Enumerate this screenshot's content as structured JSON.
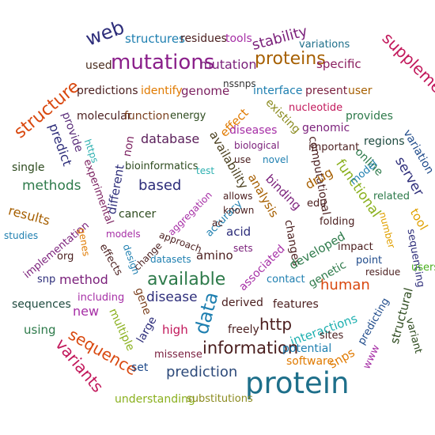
{
  "words": [
    {
      "text": "web",
      "color": "#2d2d7a"
    },
    {
      "text": "structures",
      "color": "#1e7fb0"
    },
    {
      "text": "residues",
      "color": "#4a1e1e"
    },
    {
      "text": "tools",
      "color": "#a62fa6"
    },
    {
      "text": "stability",
      "color": "#7a1f7a"
    },
    {
      "text": "variations",
      "color": "#1e6f8a"
    },
    {
      "text": "used",
      "color": "#4a2d1e"
    },
    {
      "text": "mutations",
      "color": "#8a1f8a"
    },
    {
      "text": "mutation",
      "color": "#7a1f7a"
    },
    {
      "text": "proteins",
      "color": "#a65f00"
    },
    {
      "text": "specific",
      "color": "#8a1f5f"
    },
    {
      "text": "supplementary",
      "color": "#c2185b"
    },
    {
      "text": "structure",
      "color": "#d9480f"
    },
    {
      "text": "predictions",
      "color": "#4a1e1e"
    },
    {
      "text": "identify",
      "color": "#e07a00"
    },
    {
      "text": "genome",
      "color": "#7a1f5f"
    },
    {
      "text": "nssnps",
      "color": "#333333"
    },
    {
      "text": "interface",
      "color": "#1e7fb0"
    },
    {
      "text": "present",
      "color": "#7a1f3f"
    },
    {
      "text": "user",
      "color": "#a65f00"
    },
    {
      "text": "provide",
      "color": "#5a2d7a"
    },
    {
      "text": "molecular",
      "color": "#4a1e1e"
    },
    {
      "text": "function",
      "color": "#7a3f1e"
    },
    {
      "text": "energy",
      "color": "#2d4a1e"
    },
    {
      "text": "effect",
      "color": "#e07a00"
    },
    {
      "text": "existing",
      "color": "#8a8a1e"
    },
    {
      "text": "nucleotide",
      "color": "#c2185b"
    },
    {
      "text": "provides",
      "color": "#2d7a4a"
    },
    {
      "text": "predict",
      "color": "#2d2d7a"
    },
    {
      "text": "diseases",
      "color": "#a62fa6"
    },
    {
      "text": "genomic",
      "color": "#7a1f7a"
    },
    {
      "text": "variation",
      "color": "#1e4a8a"
    },
    {
      "text": "https",
      "color": "#2db0b0"
    },
    {
      "text": "non",
      "color": "#7a1f5f"
    },
    {
      "text": "database",
      "color": "#5a1f5a"
    },
    {
      "text": "availability",
      "color": "#4a3f1e"
    },
    {
      "text": "biological",
      "color": "#7a1f7a"
    },
    {
      "text": "important",
      "color": "#4a1e1e"
    },
    {
      "text": "regions",
      "color": "#1e4a3f"
    },
    {
      "text": "online",
      "color": "#2d7a4a"
    },
    {
      "text": "server",
      "color": "#2d2d7a"
    },
    {
      "text": "single",
      "color": "#2d4a1e"
    },
    {
      "text": "bioinformatics",
      "color": "#2d4a1e"
    },
    {
      "text": "use",
      "color": "#4a1e1e"
    },
    {
      "text": "novel",
      "color": "#1e7fb0"
    },
    {
      "text": "computational",
      "color": "#4a1e1e"
    },
    {
      "text": "methods",
      "color": "#2d7a4a"
    },
    {
      "text": "experimental",
      "color": "#7a1f5f"
    },
    {
      "text": "different",
      "color": "#2d2d7a"
    },
    {
      "text": "test",
      "color": "#2db0b0"
    },
    {
      "text": "drug",
      "color": "#a65f00"
    },
    {
      "text": "functional",
      "color": "#8ab01e"
    },
    {
      "text": "model",
      "color": "#1e7fb0"
    },
    {
      "text": "related",
      "color": "#2d7a4a"
    },
    {
      "text": "tool",
      "color": "#e0a000"
    },
    {
      "text": "based",
      "color": "#2d2d7a"
    },
    {
      "text": "analysis",
      "color": "#a65f00"
    },
    {
      "text": "binding",
      "color": "#7a1f7a"
    },
    {
      "text": "allows",
      "color": "#4a1e1e"
    },
    {
      "text": "edu",
      "color": "#4a1e1e"
    },
    {
      "text": "results",
      "color": "#a65f00"
    },
    {
      "text": "cancer",
      "color": "#2d4a1e"
    },
    {
      "text": "aggregation",
      "color": "#a62fa6"
    },
    {
      "text": "accuracy",
      "color": "#1e7fb0"
    },
    {
      "text": "known",
      "color": "#4a1e1e"
    },
    {
      "text": "folding",
      "color": "#4a1e1e"
    },
    {
      "text": "number",
      "color": "#e0a000"
    },
    {
      "text": "studies",
      "color": "#1e7fb0"
    },
    {
      "text": "implementation",
      "color": "#7a1f7a"
    },
    {
      "text": "genes",
      "color": "#e07a00"
    },
    {
      "text": "models",
      "color": "#a62fa6"
    },
    {
      "text": "ac",
      "color": "#4a1e1e"
    },
    {
      "text": "acid",
      "color": "#2d2d7a"
    },
    {
      "text": "changes",
      "color": "#4a1e1e"
    },
    {
      "text": "developed",
      "color": "#2d7a4a"
    },
    {
      "text": "impact",
      "color": "#4a1e1e"
    },
    {
      "text": "sequencing",
      "color": "#2d2d7a"
    },
    {
      "text": "org",
      "color": "#4a1e1e"
    },
    {
      "text": "effects",
      "color": "#4a1e1e"
    },
    {
      "text": "design",
      "color": "#1e7fb0"
    },
    {
      "text": "change",
      "color": "#4a1e1e"
    },
    {
      "text": "approach",
      "color": "#4a1e1e"
    },
    {
      "text": "sets",
      "color": "#7a1f7a"
    },
    {
      "text": "associated",
      "color": "#a62fa6"
    },
    {
      "text": "point",
      "color": "#1e4a8a"
    },
    {
      "text": "users",
      "color": "#4ab01e"
    },
    {
      "text": "snp",
      "color": "#2d2d7a"
    },
    {
      "text": "method",
      "color": "#7a1f7a"
    },
    {
      "text": "datasets",
      "color": "#1e7fb0"
    },
    {
      "text": "amino",
      "color": "#4a1e1e"
    },
    {
      "text": "genetic",
      "color": "#2d7a4a"
    },
    {
      "text": "residue",
      "color": "#4a1e1e"
    },
    {
      "text": "available",
      "color": "#2d7a4a"
    },
    {
      "text": "contact",
      "color": "#1e7fb0"
    },
    {
      "text": "human",
      "color": "#d9480f"
    },
    {
      "text": "sequences",
      "color": "#1e4a3f"
    },
    {
      "text": "including",
      "color": "#a62fa6"
    },
    {
      "text": "gene",
      "color": "#7a3f1e"
    },
    {
      "text": "disease",
      "color": "#2d2d7a"
    },
    {
      "text": "data",
      "color": "#1e7fb0"
    },
    {
      "text": "derived",
      "color": "#4a1e1e"
    },
    {
      "text": "features",
      "color": "#4a1e1e"
    },
    {
      "text": "predicting",
      "color": "#1e4a8a"
    },
    {
      "text": "structural",
      "color": "#2d4a1e"
    },
    {
      "text": "new",
      "color": "#a62fa6"
    },
    {
      "text": "http",
      "color": "#4a1e1e"
    },
    {
      "text": "using",
      "color": "#2d7a4a"
    },
    {
      "text": "multiple",
      "color": "#8ab01e"
    },
    {
      "text": "large",
      "color": "#2d2d7a"
    },
    {
      "text": "high",
      "color": "#c2185b"
    },
    {
      "text": "freely",
      "color": "#4a1e1e"
    },
    {
      "text": "interactions",
      "color": "#1eb0b0"
    },
    {
      "text": "sites",
      "color": "#4a1e1e"
    },
    {
      "text": "variant",
      "color": "#2d4a1e"
    },
    {
      "text": "sequence",
      "color": "#d9480f"
    },
    {
      "text": "information",
      "color": "#4a1e1e"
    },
    {
      "text": "potential",
      "color": "#1e7fb0"
    },
    {
      "text": "www",
      "color": "#a62fa6"
    },
    {
      "text": "variants",
      "color": "#c2185b"
    },
    {
      "text": "missense",
      "color": "#7a1f3f"
    },
    {
      "text": "software",
      "color": "#e07a00"
    },
    {
      "text": "snps",
      "color": "#e07a00"
    },
    {
      "text": "set",
      "color": "#1e4a8a"
    },
    {
      "text": "prediction",
      "color": "#2d4a7a"
    },
    {
      "text": "protein",
      "color": "#1e6f8a"
    },
    {
      "text": "understanding",
      "color": "#8ab01e"
    },
    {
      "text": "substitutions",
      "color": "#8a8a1e"
    }
  ]
}
